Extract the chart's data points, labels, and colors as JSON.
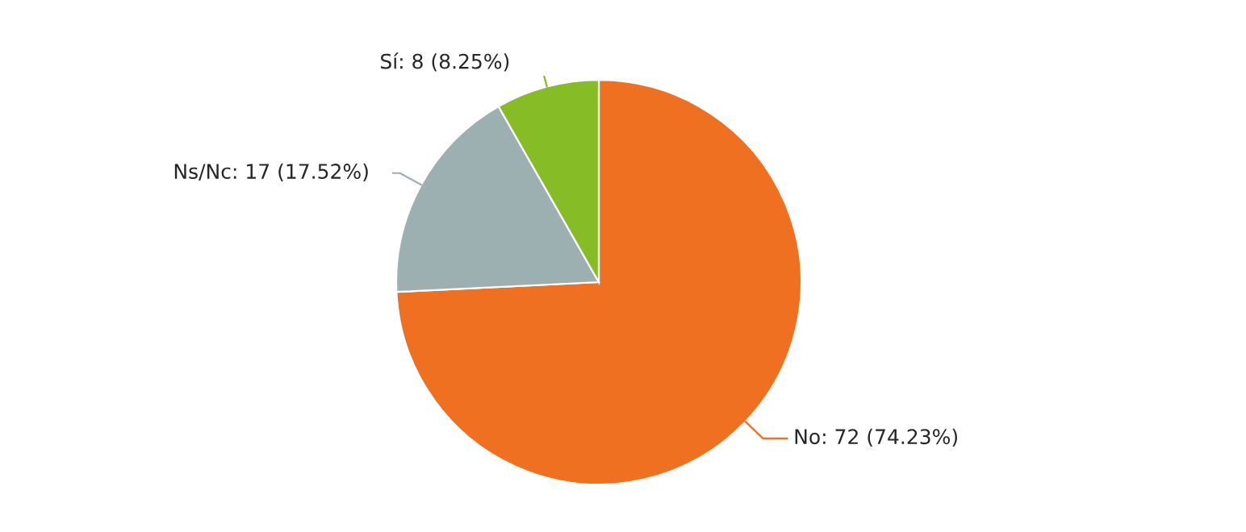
{
  "chart_data": {
    "type": "pie",
    "categories": [
      "No: 72 (74.23%)",
      "Ns/Nc: 17 (17.52%)",
      "Sí: 8 (8.25%)"
    ],
    "values": [
      72,
      17,
      8
    ],
    "colors": [
      "#ef7020",
      "#9db0b1",
      "#86bc25"
    ],
    "legend": false
  }
}
